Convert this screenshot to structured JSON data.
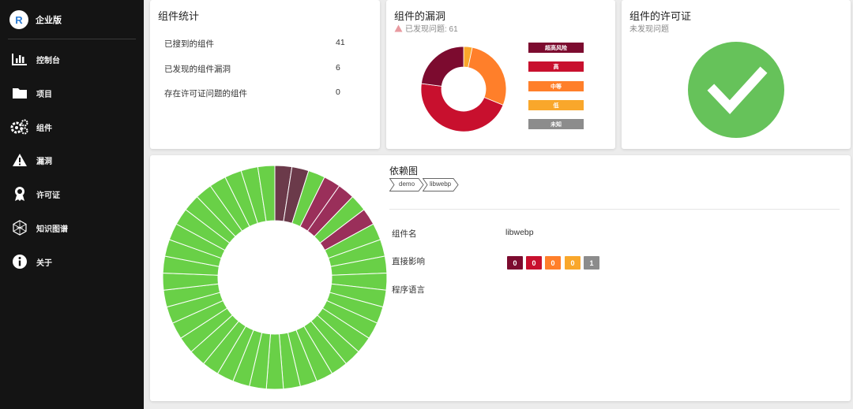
{
  "brand": {
    "name": "企业版"
  },
  "sidebar": {
    "items": [
      {
        "label": "控制台",
        "icon": "bar-chart-icon"
      },
      {
        "label": "项目",
        "icon": "folder-icon"
      },
      {
        "label": "组件",
        "icon": "cogs-icon"
      },
      {
        "label": "漏洞",
        "icon": "warning-icon"
      },
      {
        "label": "许可证",
        "icon": "award-icon"
      },
      {
        "label": "知识图谱",
        "icon": "graph-icon"
      },
      {
        "label": "关于",
        "icon": "info-icon"
      }
    ]
  },
  "stats_card": {
    "title": "组件统计",
    "rows": [
      {
        "label": "已搜到的组件",
        "value": "41"
      },
      {
        "label": "已发现的组件漏洞",
        "value": "6"
      },
      {
        "label": "存在许可证问题的组件",
        "value": "0"
      }
    ]
  },
  "vuln_card": {
    "title": "组件的漏洞",
    "subtitle": "已发现问题: 61",
    "chart_data": {
      "type": "pie",
      "series": [
        {
          "name": "超高风险",
          "value": 14,
          "color": "#7c0b2f"
        },
        {
          "name": "高",
          "value": 28,
          "color": "#c8102e"
        },
        {
          "name": "中等",
          "value": 17,
          "color": "#ff7f2a"
        },
        {
          "name": "低",
          "value": 2,
          "color": "#f9a72b"
        },
        {
          "name": "未知",
          "value": 0,
          "color": "#8c8c8c"
        }
      ]
    }
  },
  "license_card": {
    "title": "组件的许可证",
    "subtitle": "未发现问题",
    "status_color": "#66c25a"
  },
  "dependency": {
    "title": "依赖图",
    "breadcrumb": [
      "demo",
      "libwebp"
    ],
    "component_name_label": "组件名",
    "component_name": "libwebp",
    "direct_impact_label": "直接影响",
    "language_label": "程序语言",
    "impact_counts": [
      {
        "value": "0",
        "color": "#7c0b2f"
      },
      {
        "value": "0",
        "color": "#c8102e"
      },
      {
        "value": "0",
        "color": "#ff7f2a"
      },
      {
        "value": "0",
        "color": "#f9a72b"
      },
      {
        "value": "1",
        "color": "#8c8c8c"
      }
    ],
    "ring": {
      "segment_count": 41,
      "colors": {
        "high": "#6b3a4a",
        "medium": "#9a2f5a",
        "ok": "#69d047"
      },
      "segment_status": [
        "high",
        "high",
        "ok",
        "medium",
        "medium",
        "ok",
        "medium",
        "ok",
        "ok",
        "ok",
        "ok",
        "ok",
        "ok",
        "ok",
        "ok",
        "ok",
        "ok",
        "ok",
        "ok",
        "ok",
        "ok",
        "ok",
        "ok",
        "ok",
        "ok",
        "ok",
        "ok",
        "ok",
        "ok",
        "ok",
        "ok",
        "ok",
        "ok",
        "ok",
        "ok",
        "ok",
        "ok",
        "ok",
        "ok",
        "ok",
        "ok"
      ]
    }
  }
}
